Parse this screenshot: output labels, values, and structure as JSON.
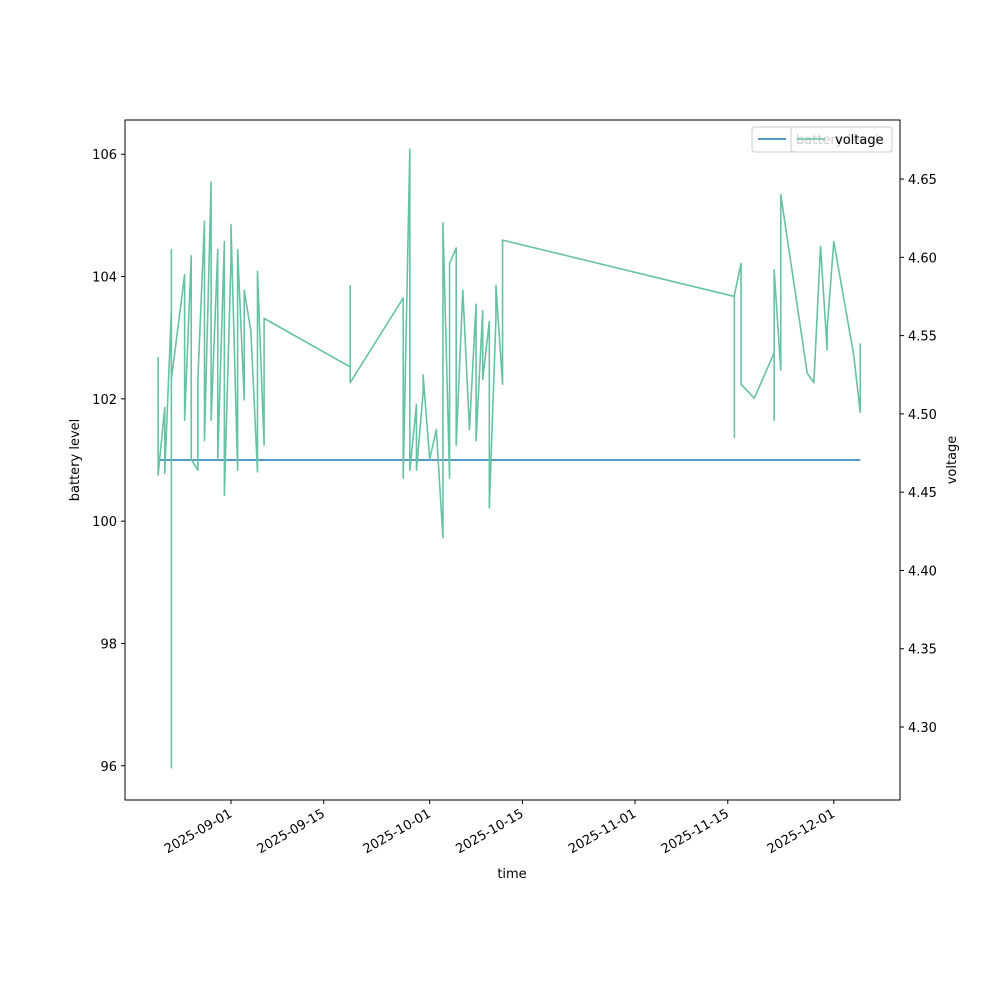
{
  "chart_data": {
    "type": "line",
    "xlabel": "time",
    "ylabel": "battery level",
    "y2label": "voltage",
    "xlim": [
      "2025-08-16",
      "2025-12-11"
    ],
    "xticks": [
      "2025-09-01",
      "2025-09-15",
      "2025-10-01",
      "2025-10-15",
      "2025-11-01",
      "2025-11-15",
      "2025-12-01"
    ],
    "ylim": [
      95.44,
      106.56
    ],
    "yticks": [
      96,
      98,
      100,
      102,
      104,
      106
    ],
    "y2lim": [
      4.2534,
      4.6877
    ],
    "y2ticks": [
      {
        "value": 4.3,
        "label": "4.30"
      },
      4.35,
      {
        "value": 4.4,
        "label": "4.40"
      },
      4.45,
      {
        "value": 4.5,
        "label": "4.50"
      },
      4.55,
      {
        "value": 4.6,
        "label": "4.60"
      },
      4.65
    ],
    "legend": "upper right",
    "series": [
      {
        "name": "battery level",
        "color": "#1f77b4",
        "axis": "y",
        "x": [
          "2025-08-21",
          "2025-12-05"
        ],
        "values": [
          101,
          101
        ]
      },
      {
        "name": "voltage",
        "color": "#66c2a5",
        "axis": "y2",
        "x": [
          "2025-08-21",
          "2025-08-21",
          "2025-08-21",
          "2025-08-22",
          "2025-08-22",
          "2025-08-23",
          "2025-08-23",
          "2025-08-23",
          "2025-08-23",
          "2025-08-25",
          "2025-08-25",
          "2025-08-26",
          "2025-08-26",
          "2025-08-27",
          "2025-08-27",
          "2025-08-28",
          "2025-08-28",
          "2025-08-29",
          "2025-08-29",
          "2025-08-30",
          "2025-08-30",
          "2025-08-31",
          "2025-08-31",
          "2025-09-01",
          "2025-09-01",
          "2025-09-02",
          "2025-09-02",
          "2025-09-03",
          "2025-09-03",
          "2025-09-04",
          "2025-09-05",
          "2025-09-05",
          "2025-09-06",
          "2025-09-06",
          "2025-09-19",
          "2025-09-19",
          "2025-09-19",
          "2025-09-27",
          "2025-09-27",
          "2025-09-28",
          "2025-09-28",
          "2025-09-29",
          "2025-09-29",
          "2025-09-30",
          "2025-09-30",
          "2025-10-01",
          "2025-10-02",
          "2025-10-03",
          "2025-10-03",
          "2025-10-04",
          "2025-10-04",
          "2025-10-05",
          "2025-10-05",
          "2025-10-06",
          "2025-10-07",
          "2025-10-08",
          "2025-10-08",
          "2025-10-09",
          "2025-10-09",
          "2025-10-10",
          "2025-10-10",
          "2025-10-11",
          "2025-10-11",
          "2025-10-12",
          "2025-10-12",
          "2025-11-16",
          "2025-11-16",
          "2025-11-16",
          "2025-11-17",
          "2025-11-17",
          "2025-11-19",
          "2025-11-22",
          "2025-11-22",
          "2025-11-22",
          "2025-11-23",
          "2025-11-23",
          "2025-11-27",
          "2025-11-28",
          "2025-11-29",
          "2025-11-30",
          "2025-11-30",
          "2025-12-01",
          "2025-12-04",
          "2025-12-05",
          "2025-12-05"
        ],
        "values": [
          4.527,
          4.536,
          4.461,
          4.504,
          4.462,
          4.566,
          4.605,
          4.274,
          4.522,
          4.589,
          4.496,
          4.601,
          4.471,
          4.464,
          4.522,
          4.623,
          4.483,
          4.648,
          4.496,
          4.605,
          4.471,
          4.61,
          4.448,
          4.598,
          4.621,
          4.464,
          4.605,
          4.509,
          4.579,
          4.553,
          4.463,
          4.591,
          4.48,
          4.561,
          4.53,
          4.582,
          4.52,
          4.574,
          4.459,
          4.669,
          4.464,
          4.506,
          4.464,
          4.513,
          4.525,
          4.471,
          4.49,
          4.421,
          4.622,
          4.459,
          4.596,
          4.606,
          4.48,
          4.579,
          4.49,
          4.57,
          4.483,
          4.566,
          4.522,
          4.559,
          4.44,
          4.561,
          4.582,
          4.519,
          4.611,
          4.575,
          4.485,
          4.576,
          4.596,
          4.519,
          4.51,
          4.539,
          4.496,
          4.592,
          4.528,
          4.64,
          4.526,
          4.52,
          4.607,
          4.541,
          4.554,
          4.61,
          4.538,
          4.501,
          4.545
        ]
      }
    ]
  }
}
